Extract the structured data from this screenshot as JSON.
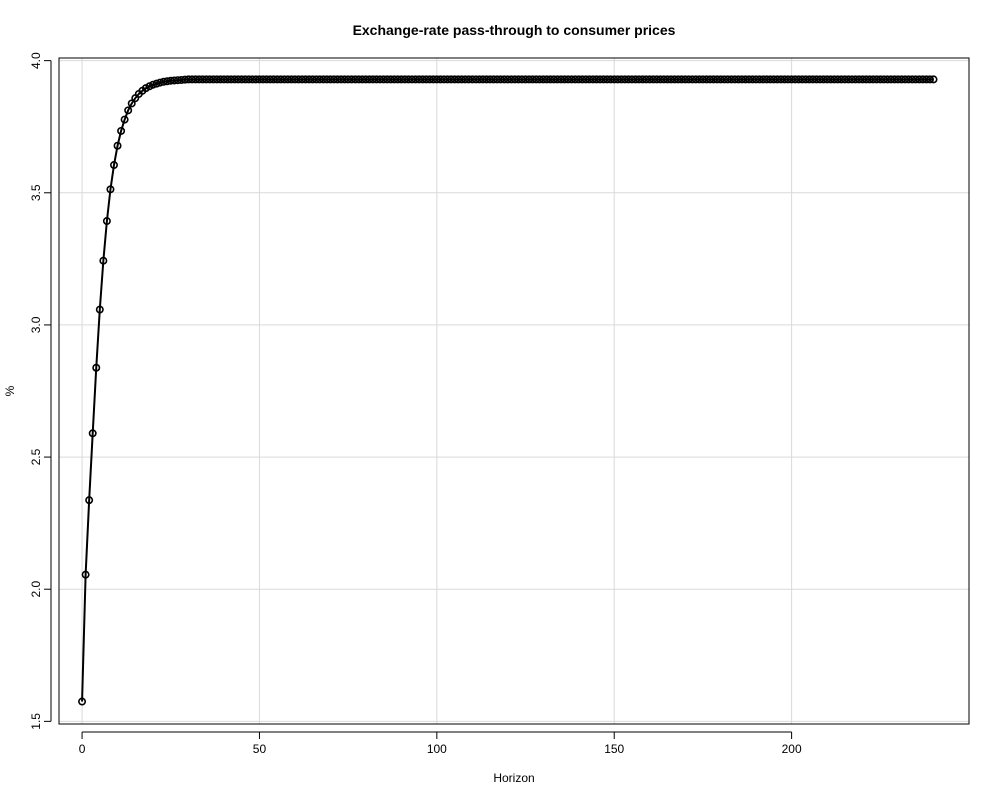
{
  "chart_data": {
    "type": "line",
    "title": "Exchange-rate pass-through to consumer prices",
    "xlabel": "Horizon",
    "ylabel": "%",
    "xlim": [
      -6.5,
      250
    ],
    "ylim": [
      1.49,
      4.01
    ],
    "grid": true,
    "x_ticks": [
      0,
      50,
      100,
      150,
      200
    ],
    "x_tick_labels": [
      "0",
      "50",
      "100",
      "150",
      "200"
    ],
    "y_ticks": [
      1.5,
      2.0,
      2.5,
      3.0,
      3.5,
      4.0
    ],
    "y_tick_labels": [
      "1.5",
      "2.0",
      "2.5",
      "3.0",
      "3.5",
      "4.0"
    ],
    "series": [
      {
        "x_start": 0,
        "x_end": 240,
        "values_head": [
          1.575,
          2.055,
          2.337,
          2.59,
          2.838,
          3.058,
          3.243,
          3.393,
          3.513,
          3.605,
          3.678,
          3.734,
          3.777,
          3.812,
          3.838,
          3.858,
          3.874,
          3.886,
          3.896,
          3.903,
          3.909,
          3.913,
          3.917,
          3.92,
          3.922,
          3.924,
          3.925,
          3.926,
          3.927,
          3.928
        ],
        "steady_value": 3.929
      }
    ]
  }
}
